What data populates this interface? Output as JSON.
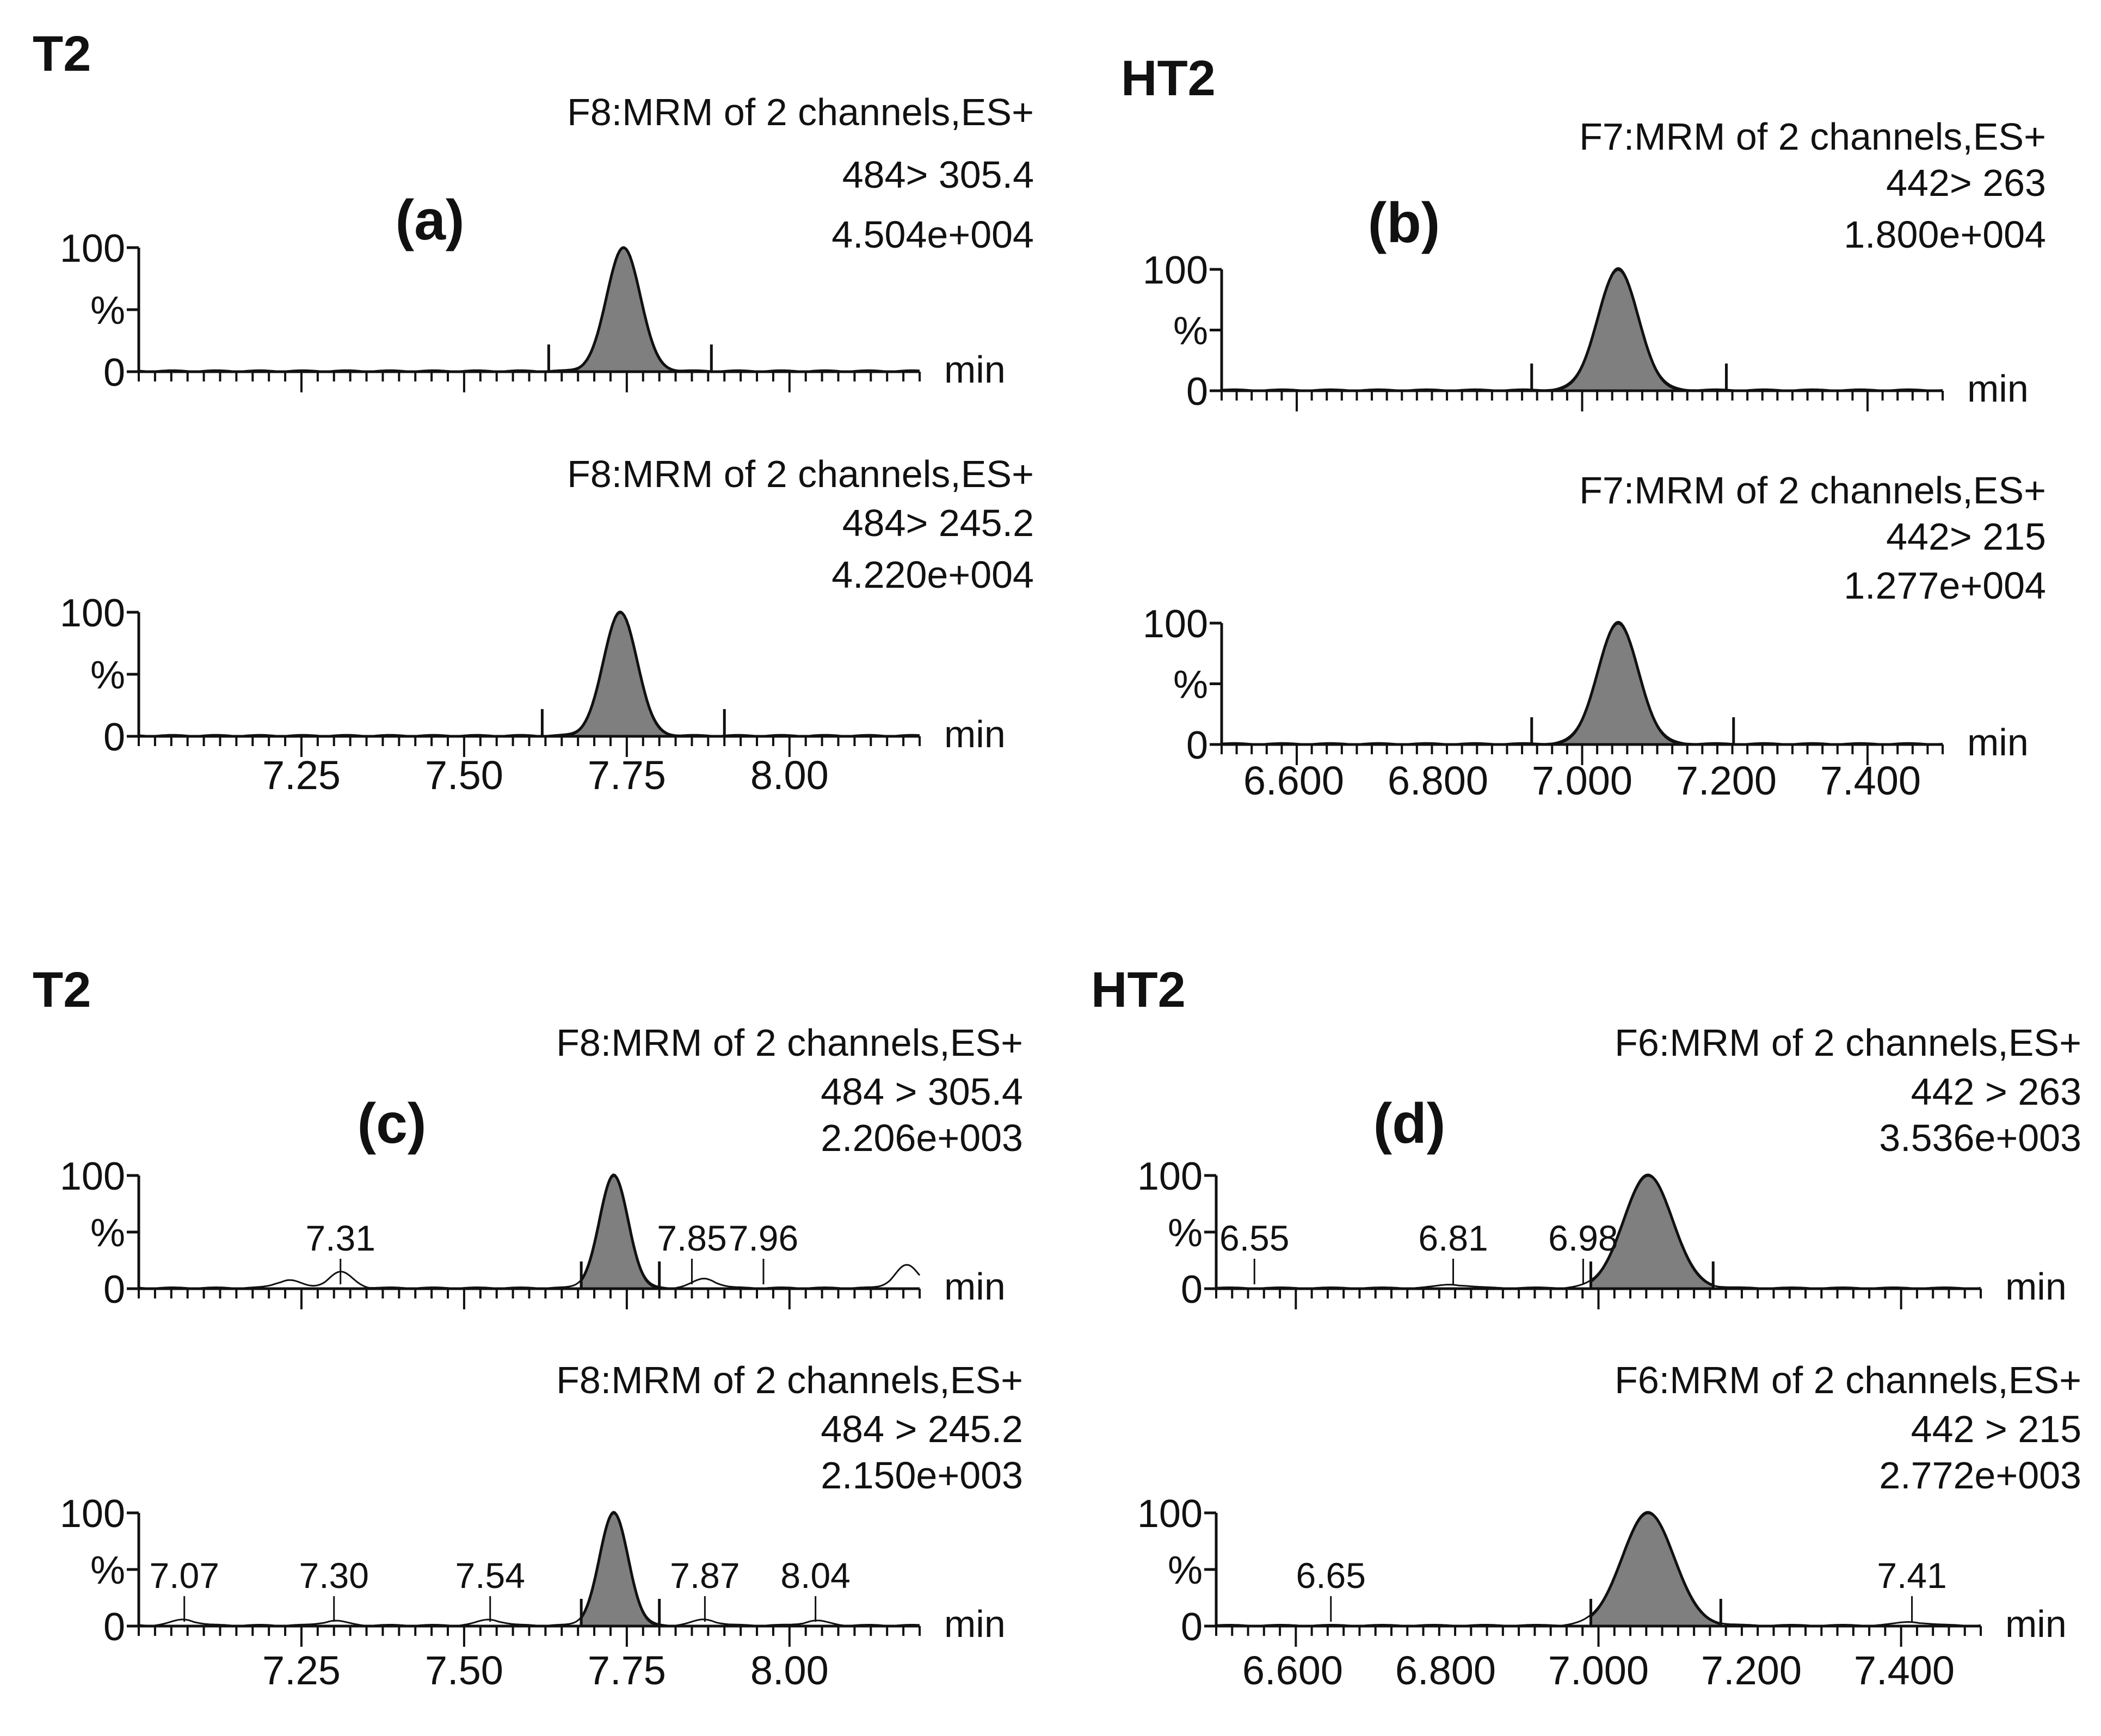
{
  "figure": {
    "x_unit": "min",
    "y_labels": [
      "100",
      "%",
      "0"
    ],
    "colors": {
      "peak_fill": "#7f7f7f",
      "line": "#111111",
      "axis": "#111111"
    }
  },
  "chart_data": [
    {
      "type": "line",
      "panel_label": "(a)",
      "compound": "T2",
      "xlim": [
        7.0,
        8.2
      ],
      "x_ticks": [
        "7.25",
        "7.50",
        "7.75",
        "8.00"
      ],
      "x_tick_values": [
        7.25,
        7.5,
        7.75,
        8.0
      ],
      "traces": [
        {
          "function": "F8:MRM of 2 channels,ES+",
          "transition": "484> 305.4",
          "intensity": "4.504e+004",
          "peak": {
            "rt": 7.745,
            "sigma": 0.026,
            "height": 100,
            "from": 7.63,
            "to": 7.88
          },
          "bumps": [],
          "annotations": [],
          "ylim": [
            0,
            100
          ]
        },
        {
          "function": "F8:MRM of 2 channels,ES+",
          "transition": "484> 245.2",
          "intensity": "4.220e+004",
          "peak": {
            "rt": 7.74,
            "sigma": 0.026,
            "height": 100,
            "from": 7.62,
            "to": 7.9
          },
          "bumps": [],
          "annotations": [],
          "ylim": [
            0,
            100
          ]
        }
      ]
    },
    {
      "type": "line",
      "panel_label": "(b)",
      "compound": "HT2",
      "xlim": [
        6.5,
        7.5
      ],
      "x_ticks": [
        "6.600",
        "6.800",
        "7.000",
        "7.200",
        "7.400"
      ],
      "x_tick_values": [
        6.6,
        6.8,
        7.0,
        7.2,
        7.4
      ],
      "traces": [
        {
          "function": "F7:MRM of 2 channels,ES+",
          "transition": "442> 263",
          "intensity": "1.800e+004",
          "peak": {
            "rt": 7.05,
            "sigma": 0.028,
            "height": 100,
            "from": 6.93,
            "to": 7.2
          },
          "bumps": [],
          "annotations": [],
          "ylim": [
            0,
            100
          ]
        },
        {
          "function": "F7:MRM of 2 channels,ES+",
          "transition": "442> 215",
          "intensity": "1.277e+004",
          "peak": {
            "rt": 7.05,
            "sigma": 0.028,
            "height": 100,
            "from": 6.93,
            "to": 7.21
          },
          "bumps": [],
          "annotations": [],
          "ylim": [
            0,
            100
          ]
        }
      ]
    },
    {
      "type": "line",
      "panel_label": "(c)",
      "compound": "T2",
      "xlim": [
        7.0,
        8.2
      ],
      "x_ticks": [
        "7.25",
        "7.50",
        "7.75",
        "8.00"
      ],
      "x_tick_values": [
        7.25,
        7.5,
        7.75,
        8.0
      ],
      "traces": [
        {
          "function": "F8:MRM of 2 channels,ES+",
          "transition": "484 > 305.4",
          "intensity": "2.206e+003",
          "peak": {
            "rt": 7.73,
            "sigma": 0.022,
            "height": 100,
            "from": 7.68,
            "to": 7.8
          },
          "bumps": [
            {
              "x": 7.23,
              "h": 7
            },
            {
              "x": 7.31,
              "h": 14
            },
            {
              "x": 7.87,
              "h": 8
            },
            {
              "x": 8.18,
              "h": 20
            }
          ],
          "annotations": [
            {
              "label": "7.31",
              "rt": 7.31
            },
            {
              "label": "7.85",
              "rt": 7.85
            },
            {
              "label": "7.96",
              "rt": 7.96
            }
          ],
          "ylim": [
            0,
            100
          ]
        },
        {
          "function": "F8:MRM of 2 channels,ES+",
          "transition": "484 > 245.2",
          "intensity": "2.150e+003",
          "peak": {
            "rt": 7.73,
            "sigma": 0.022,
            "height": 100,
            "from": 7.68,
            "to": 7.8
          },
          "bumps": [
            {
              "x": 7.07,
              "h": 5
            },
            {
              "x": 7.3,
              "h": 4
            },
            {
              "x": 7.54,
              "h": 5
            },
            {
              "x": 7.87,
              "h": 5
            },
            {
              "x": 8.04,
              "h": 4
            }
          ],
          "annotations": [
            {
              "label": "7.07",
              "rt": 7.07
            },
            {
              "label": "7.30",
              "rt": 7.3
            },
            {
              "label": "7.54",
              "rt": 7.54
            },
            {
              "label": "7.87",
              "rt": 7.87
            },
            {
              "label": "8.04",
              "rt": 8.04
            }
          ],
          "ylim": [
            0,
            100
          ]
        }
      ]
    },
    {
      "type": "line",
      "panel_label": "(d)",
      "compound": "HT2",
      "xlim": [
        6.5,
        7.5
      ],
      "x_ticks": [
        "6.600",
        "6.800",
        "7.000",
        "7.200",
        "7.400"
      ],
      "x_tick_values": [
        6.6,
        6.8,
        7.0,
        7.2,
        7.4
      ],
      "traces": [
        {
          "function": "F6:MRM of 2 channels,ES+",
          "transition": "442 > 263",
          "intensity": "3.536e+003",
          "peak": {
            "rt": 7.065,
            "sigma": 0.032,
            "height": 100,
            "from": 6.99,
            "to": 7.15
          },
          "bumps": [
            {
              "x": 6.81,
              "h": 3
            }
          ],
          "annotations": [
            {
              "label": "6.55",
              "rt": 6.55
            },
            {
              "label": "6.81",
              "rt": 6.81
            },
            {
              "label": "6.98",
              "rt": 6.98
            }
          ],
          "ylim": [
            0,
            100
          ]
        },
        {
          "function": "F6:MRM of 2 channels,ES+",
          "transition": "442 > 215",
          "intensity": "2.772e+003",
          "peak": {
            "rt": 7.065,
            "sigma": 0.034,
            "height": 100,
            "from": 6.99,
            "to": 7.16
          },
          "bumps": [
            {
              "x": 7.41,
              "h": 3
            }
          ],
          "annotations": [
            {
              "label": "6.65",
              "rt": 6.65
            },
            {
              "label": "7.41",
              "rt": 7.41
            }
          ],
          "ylim": [
            0,
            100
          ]
        }
      ]
    }
  ]
}
